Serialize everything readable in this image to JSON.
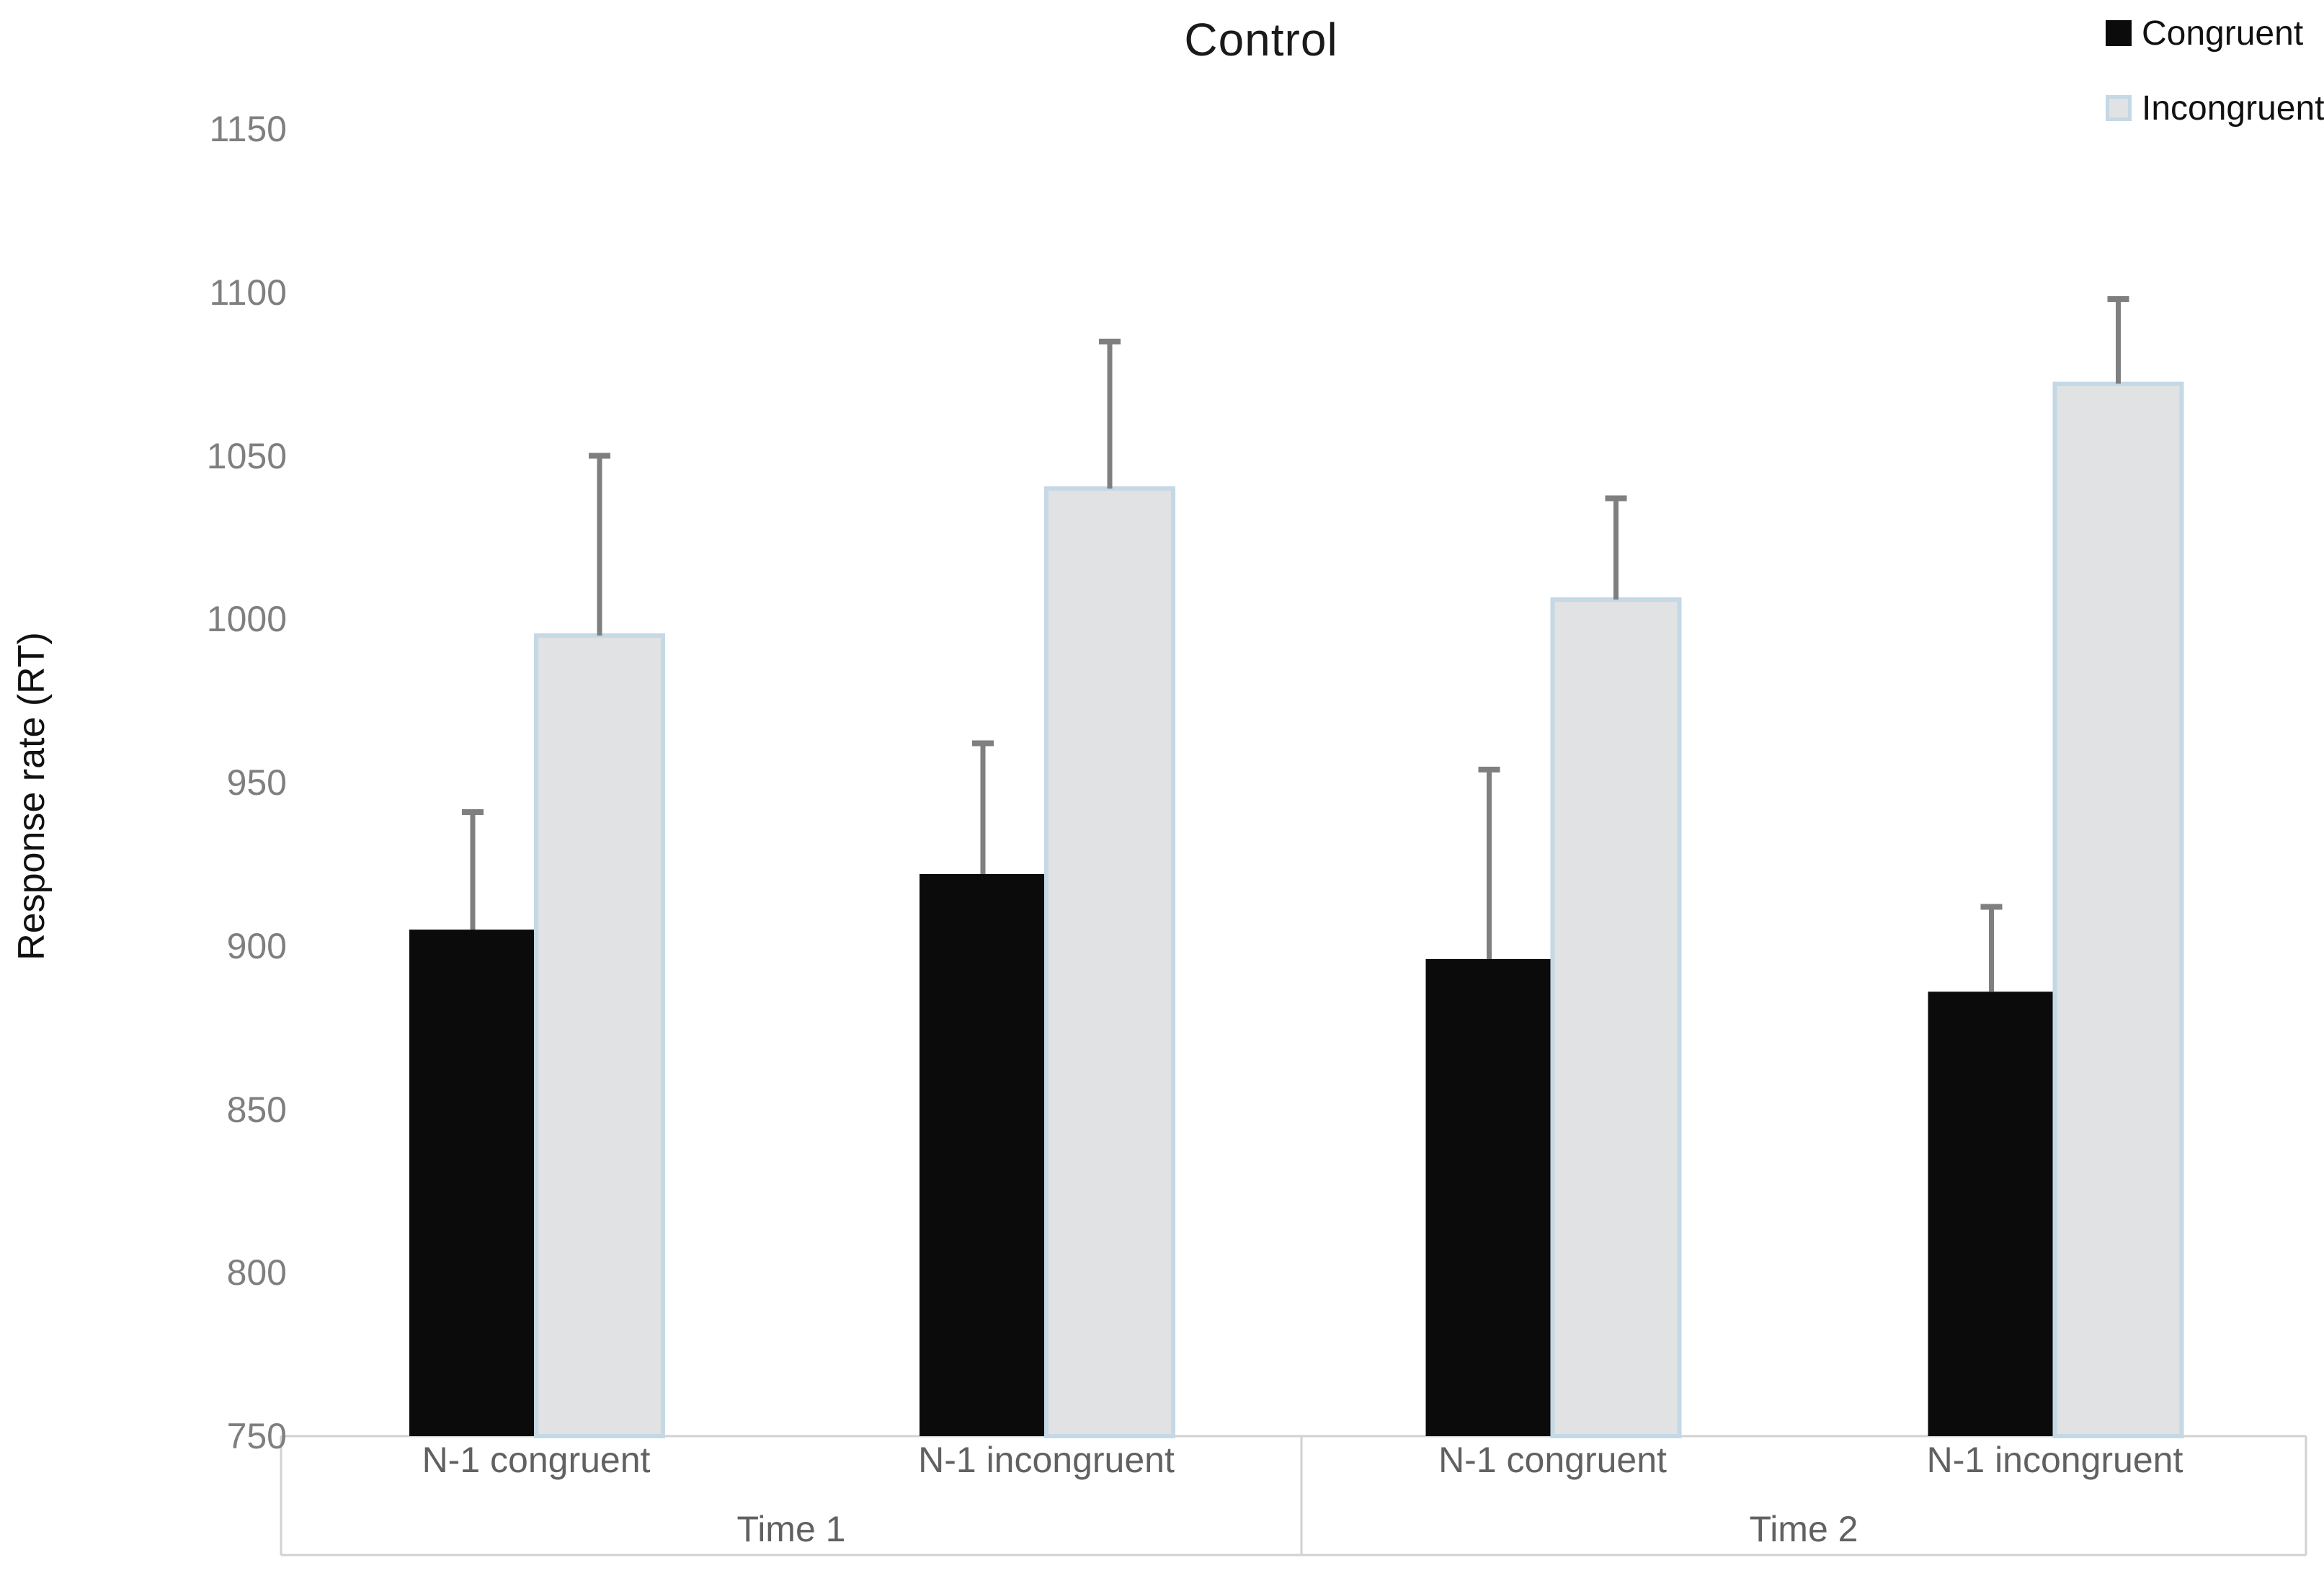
{
  "title": "Control",
  "y_axis": {
    "title": "Response rate (RT)",
    "min": 750,
    "max": 1150,
    "step": 50,
    "ticks": [
      1150,
      1100,
      1050,
      1000,
      950,
      900,
      850,
      800,
      750
    ]
  },
  "x_axis": {
    "groups": [
      {
        "label": "Time 1",
        "categories": [
          "N-1 congruent",
          "N-1 incongruent"
        ]
      },
      {
        "label": "Time 2",
        "categories": [
          "N-1 congruent",
          "N-1 incongruent"
        ]
      }
    ]
  },
  "chart_data": {
    "type": "bar",
    "title": "Control",
    "ylabel": "Response rate (RT)",
    "ylim": [
      750,
      1150
    ],
    "grid": false,
    "legend_position": "top-right",
    "group_labels": [
      "Time 1",
      "Time 2"
    ],
    "categories": [
      "N-1 congruent",
      "N-1 incongruent",
      "N-1 congruent",
      "N-1 incongruent"
    ],
    "series": [
      {
        "name": "Congruent",
        "fill": "#0b0b0b",
        "border": "#0b0b0b",
        "values": [
          905,
          922,
          896,
          886
        ],
        "error_upper": [
          36,
          40,
          58,
          26
        ]
      },
      {
        "name": "Incongruent",
        "fill": "#e1e2e3",
        "border": "#c5d8e6",
        "values": [
          995,
          1040,
          1006,
          1072
        ],
        "error_upper": [
          55,
          45,
          31,
          26
        ]
      }
    ]
  },
  "colors": {
    "error_bar": "#7f7f7f",
    "axis_line": "#d2d2d2",
    "tick_text": "#7f7f7f",
    "category_text": "#616161",
    "title_text": "#1a1a1a",
    "background": "#ffffff"
  }
}
